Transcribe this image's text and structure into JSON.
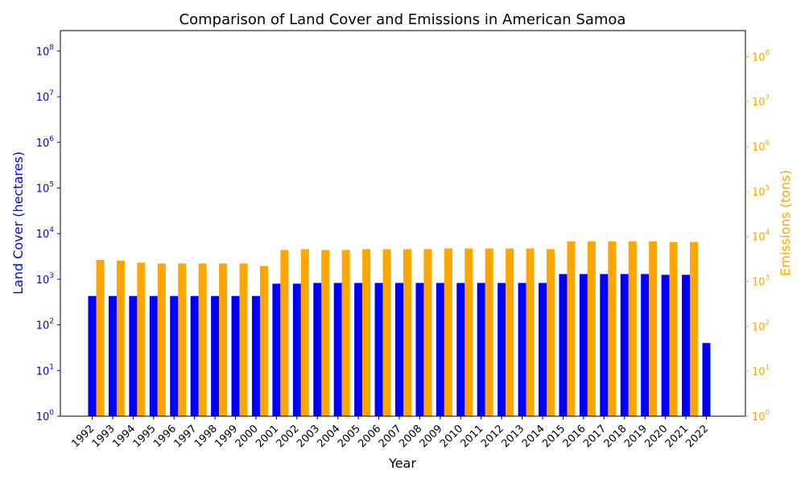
{
  "chart_data": {
    "type": "bar",
    "title": "Comparison of Land Cover and Emissions in American Samoa",
    "xlabel": "Year",
    "y_left_label": "Land Cover (hectares)",
    "y_right_label": "Emissions (tons)",
    "y_scale": "log",
    "y_left_range": [
      1,
      280000000
    ],
    "y_right_range": [
      1,
      380000000
    ],
    "left_ticks": [
      "10^0",
      "10^1",
      "10^2",
      "10^3",
      "10^4",
      "10^5",
      "10^6",
      "10^7",
      "10^8"
    ],
    "right_ticks": [
      "10^0",
      "10^1",
      "10^2",
      "10^3",
      "10^4",
      "10^5",
      "10^6",
      "10^7",
      "10^8"
    ],
    "categories": [
      "1992",
      "1993",
      "1994",
      "1995",
      "1996",
      "1997",
      "1998",
      "1999",
      "2000",
      "2001",
      "2002",
      "2003",
      "2004",
      "2005",
      "2006",
      "2007",
      "2008",
      "2009",
      "2010",
      "2011",
      "2012",
      "2013",
      "2014",
      "2015",
      "2016",
      "2017",
      "2018",
      "2019",
      "2020",
      "2021",
      "2022"
    ],
    "series": [
      {
        "name": "Land Cover",
        "axis": "left",
        "color": "#0000ff",
        "values": [
          430,
          430,
          430,
          430,
          430,
          430,
          430,
          430,
          430,
          800,
          800,
          830,
          830,
          830,
          830,
          830,
          830,
          830,
          830,
          830,
          830,
          830,
          830,
          1300,
          1300,
          1300,
          1300,
          1300,
          1250,
          1250,
          40
        ]
      },
      {
        "name": "Emissions",
        "axis": "right",
        "color": "#ffa500",
        "values": [
          3000,
          2900,
          2600,
          2500,
          2500,
          2500,
          2500,
          2500,
          2200,
          5000,
          5200,
          5000,
          5000,
          5200,
          5200,
          5200,
          5200,
          5400,
          5400,
          5400,
          5400,
          5400,
          5200,
          7800,
          7800,
          7800,
          7800,
          7800,
          7500,
          7500,
          null
        ]
      }
    ],
    "grid": false,
    "legend": "none"
  }
}
